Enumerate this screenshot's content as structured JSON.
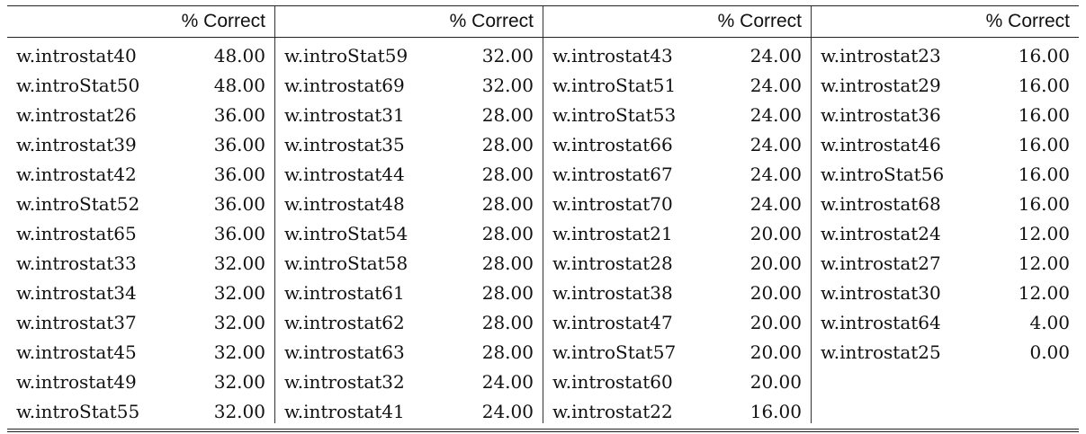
{
  "table": {
    "header_label": "% Correct",
    "columns": [
      {
        "rows": [
          {
            "name": "w.introstat40",
            "value": "48.00"
          },
          {
            "name": "w.introStat50",
            "value": "48.00"
          },
          {
            "name": "w.introstat26",
            "value": "36.00"
          },
          {
            "name": "w.introstat39",
            "value": "36.00"
          },
          {
            "name": "w.introstat42",
            "value": "36.00"
          },
          {
            "name": "w.introStat52",
            "value": "36.00"
          },
          {
            "name": "w.introstat65",
            "value": "36.00"
          },
          {
            "name": "w.introstat33",
            "value": "32.00"
          },
          {
            "name": "w.introstat34",
            "value": "32.00"
          },
          {
            "name": "w.introstat37",
            "value": "32.00"
          },
          {
            "name": "w.introstat45",
            "value": "32.00"
          },
          {
            "name": "w.introstat49",
            "value": "32.00"
          },
          {
            "name": "w.introStat55",
            "value": "32.00"
          }
        ]
      },
      {
        "rows": [
          {
            "name": "w.introStat59",
            "value": "32.00"
          },
          {
            "name": "w.introstat69",
            "value": "32.00"
          },
          {
            "name": "w.introstat31",
            "value": "28.00"
          },
          {
            "name": "w.introstat35",
            "value": "28.00"
          },
          {
            "name": "w.introstat44",
            "value": "28.00"
          },
          {
            "name": "w.introstat48",
            "value": "28.00"
          },
          {
            "name": "w.introStat54",
            "value": "28.00"
          },
          {
            "name": "w.introStat58",
            "value": "28.00"
          },
          {
            "name": "w.introstat61",
            "value": "28.00"
          },
          {
            "name": "w.introstat62",
            "value": "28.00"
          },
          {
            "name": "w.introstat63",
            "value": "28.00"
          },
          {
            "name": "w.introstat32",
            "value": "24.00"
          },
          {
            "name": "w.introstat41",
            "value": "24.00"
          }
        ]
      },
      {
        "rows": [
          {
            "name": "w.introstat43",
            "value": "24.00"
          },
          {
            "name": "w.introStat51",
            "value": "24.00"
          },
          {
            "name": "w.introStat53",
            "value": "24.00"
          },
          {
            "name": "w.introstat66",
            "value": "24.00"
          },
          {
            "name": "w.introstat67",
            "value": "24.00"
          },
          {
            "name": "w.introstat70",
            "value": "24.00"
          },
          {
            "name": "w.introstat21",
            "value": "20.00"
          },
          {
            "name": "w.introstat28",
            "value": "20.00"
          },
          {
            "name": "w.introstat38",
            "value": "20.00"
          },
          {
            "name": "w.introstat47",
            "value": "20.00"
          },
          {
            "name": "w.introStat57",
            "value": "20.00"
          },
          {
            "name": "w.introstat60",
            "value": "20.00"
          },
          {
            "name": "w.introstat22",
            "value": "16.00"
          }
        ]
      },
      {
        "rows": [
          {
            "name": "w.introstat23",
            "value": "16.00"
          },
          {
            "name": "w.introstat29",
            "value": "16.00"
          },
          {
            "name": "w.introstat36",
            "value": "16.00"
          },
          {
            "name": "w.introstat46",
            "value": "16.00"
          },
          {
            "name": "w.introStat56",
            "value": "16.00"
          },
          {
            "name": "w.introstat68",
            "value": "16.00"
          },
          {
            "name": "w.introstat24",
            "value": "12.00"
          },
          {
            "name": "w.introstat27",
            "value": "12.00"
          },
          {
            "name": "w.introstat30",
            "value": "12.00"
          },
          {
            "name": "w.introstat64",
            "value": "4.00"
          },
          {
            "name": "w.introstat25",
            "value": "0.00"
          }
        ]
      }
    ]
  }
}
